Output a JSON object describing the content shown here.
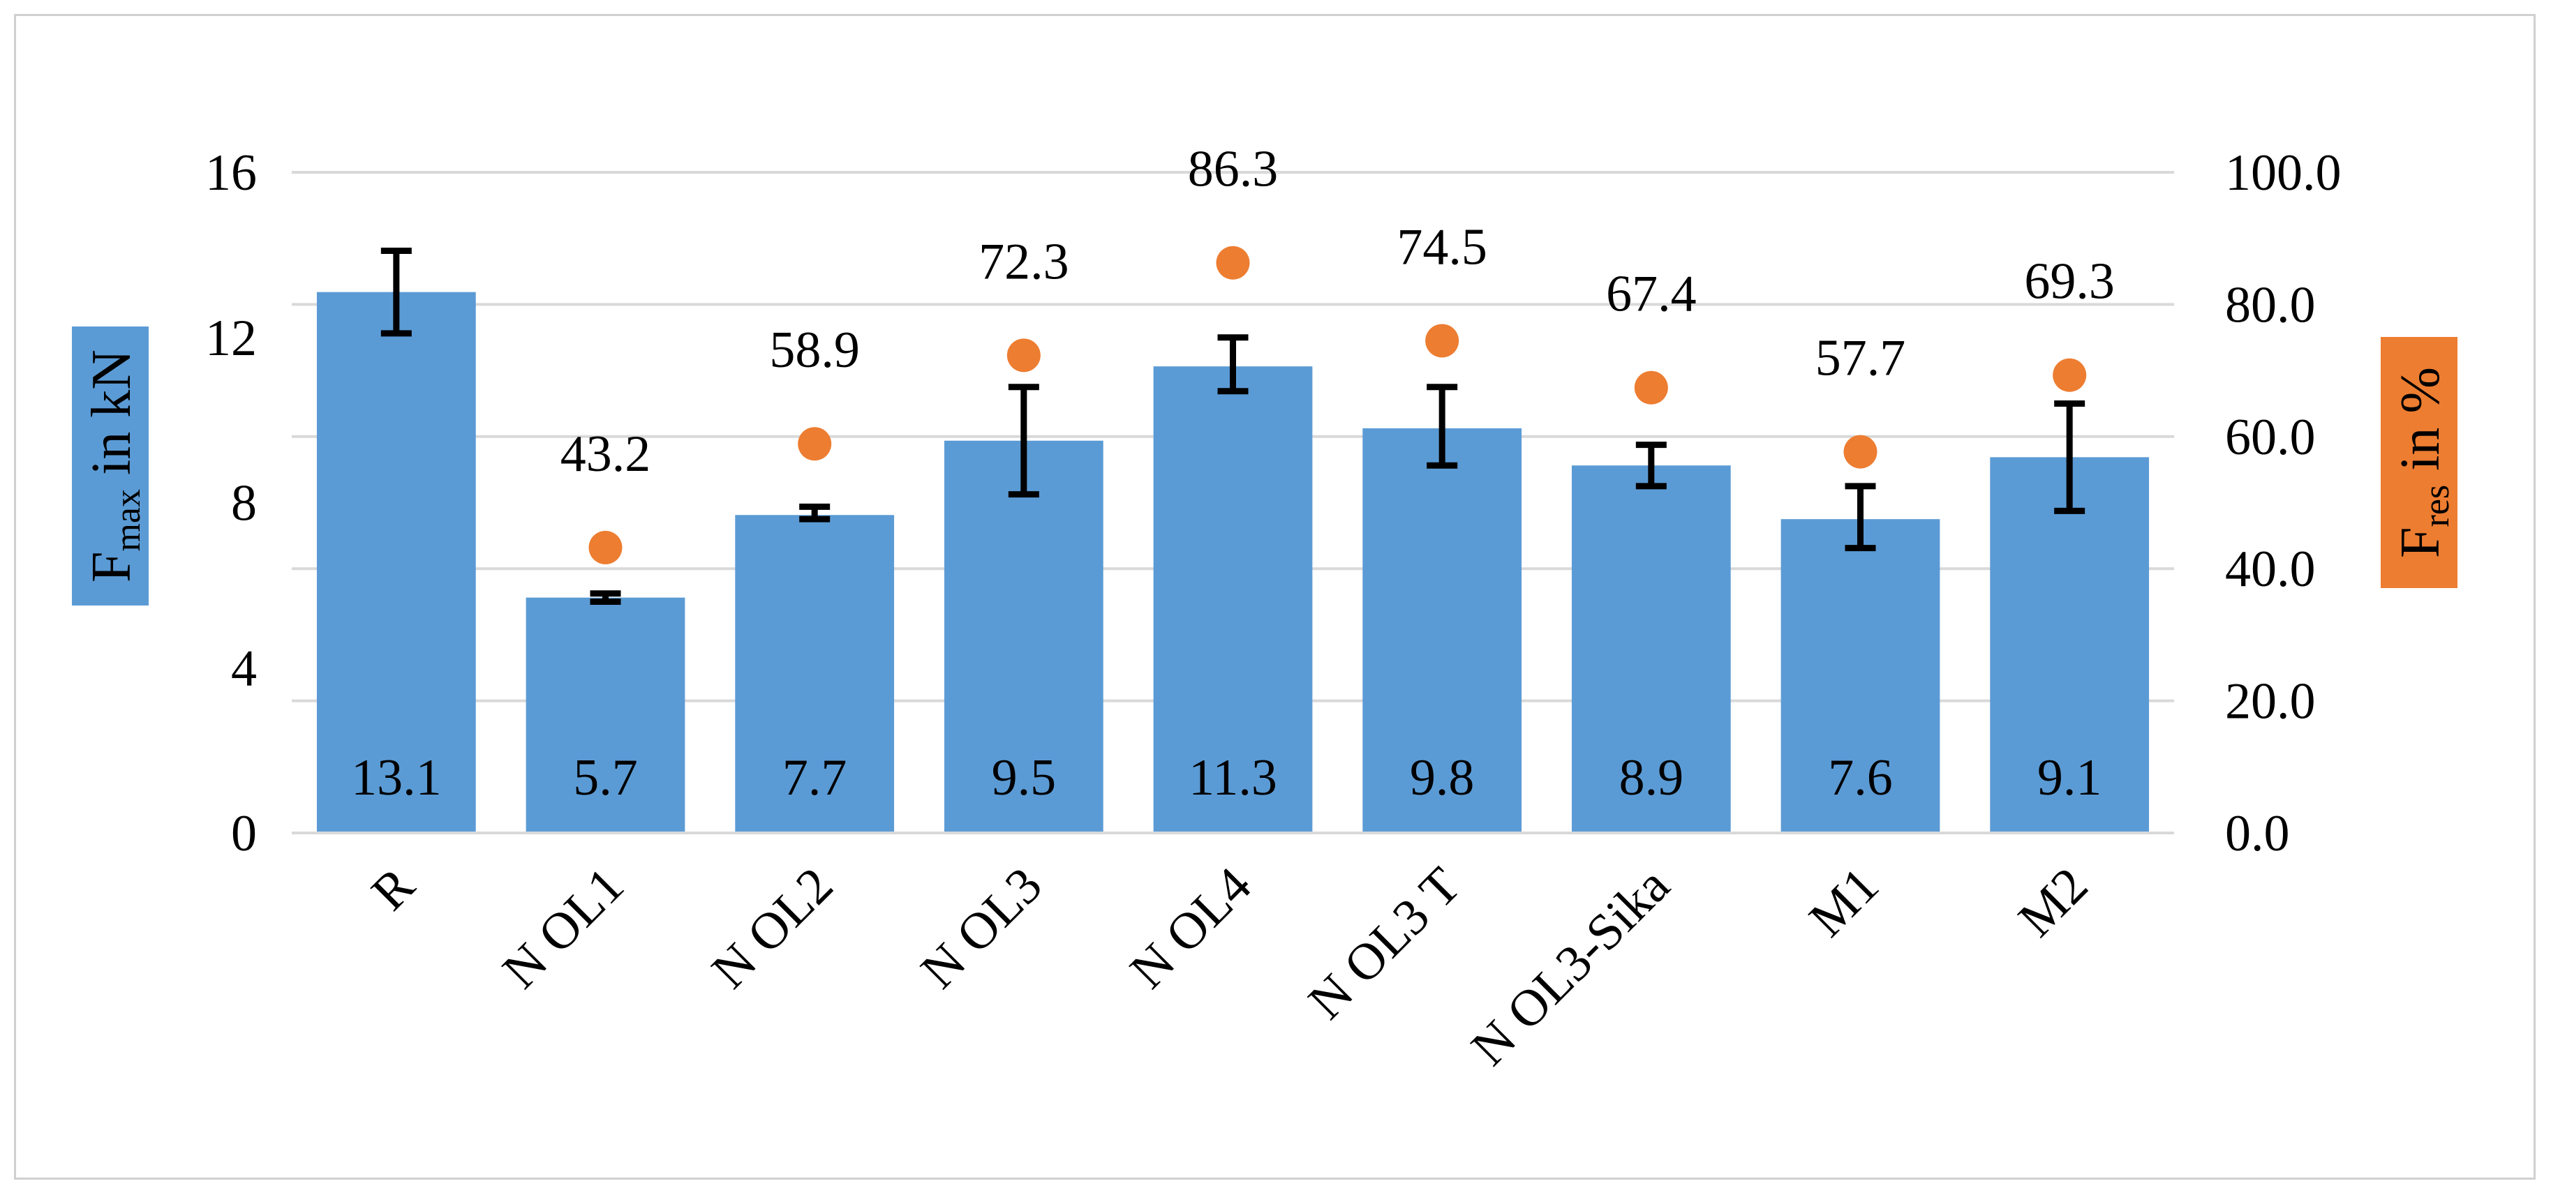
{
  "chart_data": {
    "type": "bar",
    "categories": [
      "R",
      "N OL1",
      "N OL2",
      "N OL3",
      "N OL4",
      "N OL3 T",
      "N OL3-Sika",
      "M1",
      "M2"
    ],
    "series": [
      {
        "name": "Fmax",
        "axis": "left",
        "kind": "bar",
        "color": "#5b9bd5",
        "values": [
          13.1,
          5.7,
          7.7,
          9.5,
          11.3,
          9.8,
          8.9,
          7.6,
          9.1
        ],
        "labels": [
          "13.1",
          "5.7",
          "7.7",
          "9.5",
          "11.3",
          "9.8",
          "8.9",
          "7.6",
          "9.1"
        ],
        "error_low": [
          12.1,
          5.6,
          7.6,
          8.2,
          10.7,
          8.9,
          8.4,
          6.9,
          7.8
        ],
        "error_high": [
          14.1,
          5.8,
          7.9,
          10.8,
          12.0,
          10.8,
          9.4,
          8.4,
          10.4
        ]
      },
      {
        "name": "Fres",
        "axis": "right",
        "kind": "scatter",
        "color": "#ed7d31",
        "values": [
          null,
          43.2,
          58.9,
          72.3,
          86.3,
          74.5,
          67.4,
          57.7,
          69.3
        ],
        "labels": [
          null,
          "43.2",
          "58.9",
          "72.3",
          "86.3",
          "74.5",
          "67.4",
          "57.7",
          "69.3"
        ]
      }
    ],
    "y_left": {
      "label_main": "F",
      "label_sub": "max",
      "label_rest": " in kN",
      "label_bg": "#5b9bd5",
      "ylim": [
        0,
        16
      ],
      "ticks": [
        "0",
        "4",
        "8",
        "12",
        "16"
      ]
    },
    "y_right": {
      "label_main": "F",
      "label_sub": "res",
      "label_rest": " in %",
      "label_bg": "#ed7d31",
      "ylim": [
        0,
        100
      ],
      "ticks": [
        "0.0",
        "20.0",
        "40.0",
        "60.0",
        "80.0",
        "100.0"
      ]
    },
    "grid": true,
    "gridline_color": "#d9d9d9",
    "error_bar_color": "#000000",
    "title": ""
  }
}
